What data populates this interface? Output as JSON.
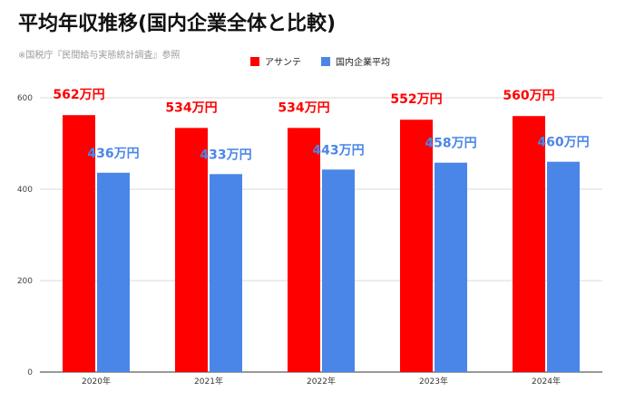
{
  "title": "平均年収推移(国内企業全体と比較)",
  "subtitle": "※国税庁『民間給与実態統計調査』参照",
  "colors": {
    "series1": "#ff0000",
    "series2": "#4a86e8",
    "label1": "#ff0000",
    "label2": "#4a86e8"
  },
  "chart_data": {
    "type": "bar",
    "categories": [
      "2020年",
      "2021年",
      "2022年",
      "2023年",
      "2024年"
    ],
    "series": [
      {
        "name": "アサンテ",
        "values": [
          562,
          534,
          534,
          552,
          560
        ],
        "labels": [
          "562万円",
          "534万円",
          "534万円",
          "552万円",
          "560万円"
        ]
      },
      {
        "name": "国内企業平均",
        "values": [
          436,
          433,
          443,
          458,
          460
        ],
        "labels": [
          "436万円",
          "433万円",
          "443万円",
          "458万円",
          "460万円"
        ]
      }
    ],
    "yticks": [
      "0",
      "200",
      "400",
      "600"
    ],
    "ylim": [
      0,
      600
    ],
    "grid": true,
    "legend_position": "top-center"
  }
}
